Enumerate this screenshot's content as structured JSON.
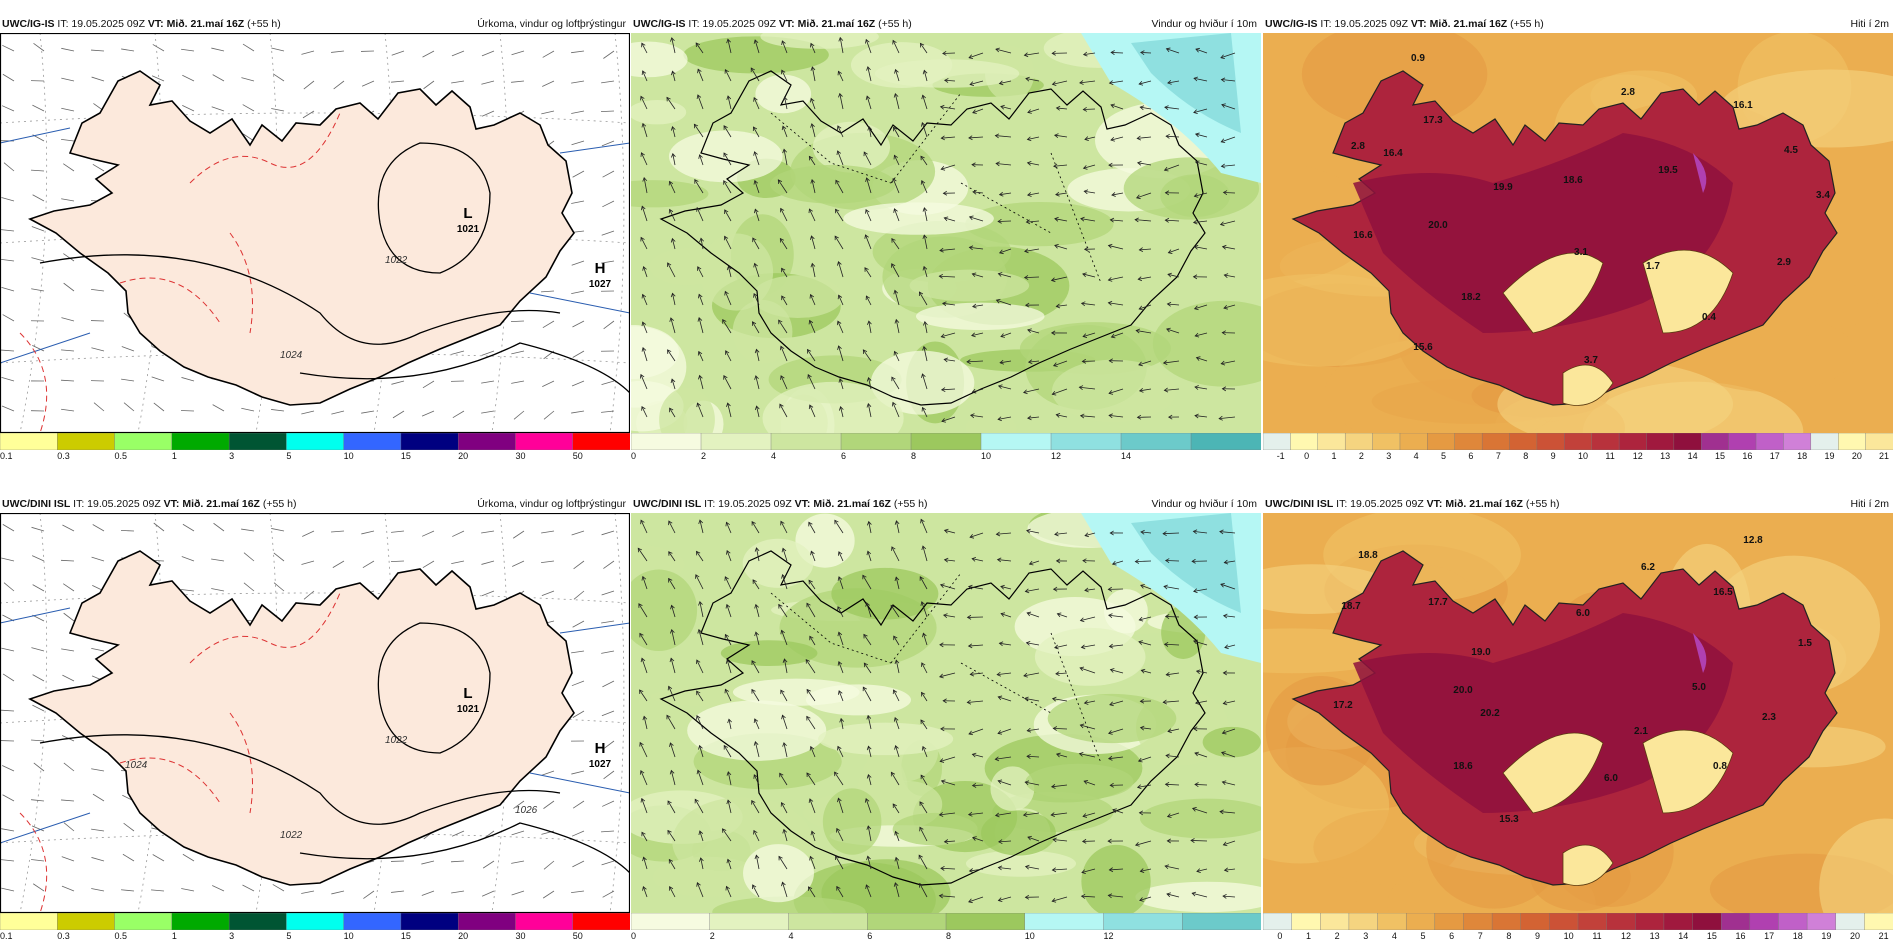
{
  "colors": {
    "precip": [
      "#ffff99",
      "#cccc00",
      "#99ff66",
      "#00aa00",
      "#005533",
      "#00ffee",
      "#3366ff",
      "#000080",
      "#800080",
      "#ff0099",
      "#ff0000"
    ],
    "wind": [
      "#f6fbe0",
      "#e3f2c0",
      "#cde6a0",
      "#b1d67a",
      "#9cc85e",
      "#b5f7f4",
      "#8fe0e0",
      "#6ccaca",
      "#4cb5b5"
    ],
    "temp": [
      "#e4f0ec",
      "#fff8b0",
      "#fbe79b",
      "#f5d480",
      "#f0c164",
      "#ebae50",
      "#e59a42",
      "#df873a",
      "#d97535",
      "#d36333",
      "#cc5236",
      "#c2413a",
      "#b8323c",
      "#ad243d",
      "#a0193e",
      "#8f103d",
      "#a03090",
      "#b040b0",
      "#c060c8",
      "#d080d8"
    ],
    "land_pressure": "#fce9dc"
  },
  "panels": [
    {
      "model": "UWC/IG-IS",
      "it": "IT: 19.05.2025 09Z",
      "vt_label": "VT:",
      "vt": "Mið. 21.maí 16Z",
      "lead": "(+55 h)",
      "title": "Úrkoma, vindur og loftþrýstingur",
      "kind": "pressure",
      "ticks": [
        "0.1",
        "0.3",
        "0.5",
        "1",
        "3",
        "5",
        "10",
        "15",
        "20",
        "30",
        "50"
      ],
      "highs_lows": [
        {
          "letter": "L",
          "value": "1021"
        },
        {
          "letter": "H",
          "value": "1027"
        }
      ],
      "isobars": [
        "1022",
        "1024"
      ]
    },
    {
      "model": "UWC/IG-IS",
      "it": "IT: 19.05.2025 09Z",
      "vt_label": "VT:",
      "vt": "Mið. 21.maí 16Z",
      "lead": "(+55 h)",
      "title": "Vindur og hviður í 10m",
      "kind": "wind",
      "ticks": [
        "0",
        "2",
        "4",
        "6",
        "8",
        "10",
        "12",
        "14"
      ]
    },
    {
      "model": "UWC/IG-IS",
      "it": "IT: 19.05.2025 09Z",
      "vt_label": "VT:",
      "vt": "Mið. 21.maí 16Z",
      "lead": "(+55 h)",
      "title": "Hiti í 2m",
      "kind": "temp",
      "ticks": [
        "-1",
        "0",
        "1",
        "2",
        "3",
        "4",
        "5",
        "6",
        "7",
        "8",
        "9",
        "10",
        "11",
        "12",
        "13",
        "14",
        "15",
        "16",
        "17",
        "18",
        "19",
        "20",
        "21"
      ],
      "labels": [
        "0.9",
        "17.3",
        "2.8",
        "16.1",
        "2.8",
        "16.4",
        "4.5",
        "19.9",
        "18.6",
        "19.5",
        "3.4",
        "16.6",
        "20.0",
        "3.1",
        "1.7",
        "2.9",
        "18.2",
        "0.4",
        "15.6",
        "3.7"
      ]
    },
    {
      "model": "UWC/DINI ISL",
      "it": "IT: 19.05.2025 09Z",
      "vt_label": "VT:",
      "vt": "Mið. 21.maí 16Z",
      "lead": "(+55 h)",
      "title": "Úrkoma, vindur og loftþrýstingur",
      "kind": "pressure",
      "ticks": [
        "0.1",
        "0.3",
        "0.5",
        "1",
        "3",
        "5",
        "10",
        "15",
        "20",
        "30",
        "50"
      ],
      "highs_lows": [
        {
          "letter": "L",
          "value": "1021"
        },
        {
          "letter": "H",
          "value": "1027"
        }
      ],
      "isobars": [
        "1022",
        "1022",
        "1024",
        "1026"
      ]
    },
    {
      "model": "UWC/DINI ISL",
      "it": "IT: 19.05.2025 09Z",
      "vt_label": "VT:",
      "vt": "Mið. 21.maí 16Z",
      "lead": "(+55 h)",
      "title": "Vindur og hviður í 10m",
      "kind": "wind",
      "ticks": [
        "0",
        "2",
        "4",
        "6",
        "8",
        "10",
        "12"
      ]
    },
    {
      "model": "UWC/DINI ISL",
      "it": "IT: 19.05.2025 09Z",
      "vt_label": "VT:",
      "vt": "Mið. 21.maí 16Z",
      "lead": "(+55 h)",
      "title": "Hiti í 2m",
      "kind": "temp",
      "ticks": [
        "0",
        "1",
        "2",
        "3",
        "4",
        "5",
        "6",
        "7",
        "8",
        "9",
        "10",
        "11",
        "12",
        "13",
        "14",
        "15",
        "16",
        "17",
        "18",
        "19",
        "20",
        "21"
      ],
      "labels": [
        "12.8",
        "18.8",
        "6.2",
        "16.5",
        "18.7",
        "17.7",
        "6.0",
        "1.5",
        "19.0",
        "20.0",
        "5.0",
        "17.2",
        "20.2",
        "2.3",
        "2.1",
        "0.8",
        "18.6",
        "6.0",
        "15.3"
      ]
    }
  ]
}
